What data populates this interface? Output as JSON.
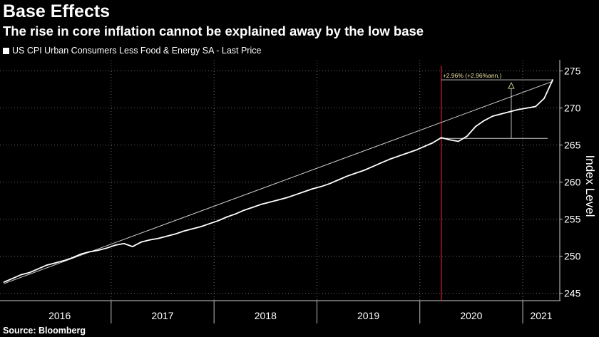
{
  "header": {
    "title": "Base Effects",
    "subtitle": "The rise in core inflation cannot be explained away by the low base"
  },
  "legend": {
    "label": "US CPI Urban Consumers Less Food & Energy SA - Last Price"
  },
  "footer": {
    "source": "Source: Bloomberg"
  },
  "colors": {
    "background": "#000000",
    "series": "#ffffff",
    "trendline": "#cfcfcf",
    "grid": "#8a8a8a",
    "marker": "#e0202a",
    "annotation": "#e8e0a0"
  },
  "chart_data": {
    "type": "line",
    "title": "Base Effects",
    "subtitle": "The rise in core inflation cannot be explained away by the low base",
    "xlabel": "",
    "ylabel": "Index Level",
    "ylim": [
      244,
      276.5
    ],
    "xlim": [
      2015.92,
      2021.36
    ],
    "x_ticks": [
      "2016",
      "2017",
      "2018",
      "2019",
      "2020",
      "2021"
    ],
    "y_ticks": [
      245,
      250,
      255,
      260,
      265,
      270,
      275
    ],
    "grid": true,
    "legend_position": "top-left",
    "series": [
      {
        "name": "US CPI Urban Consumers Less Food & Energy SA - Last Price",
        "x": [
          "2015-12",
          "2016-01",
          "2016-02",
          "2016-03",
          "2016-04",
          "2016-05",
          "2016-06",
          "2016-07",
          "2016-08",
          "2016-09",
          "2016-10",
          "2016-11",
          "2016-12",
          "2017-01",
          "2017-02",
          "2017-03",
          "2017-04",
          "2017-05",
          "2017-06",
          "2017-07",
          "2017-08",
          "2017-09",
          "2017-10",
          "2017-11",
          "2017-12",
          "2018-01",
          "2018-02",
          "2018-03",
          "2018-04",
          "2018-05",
          "2018-06",
          "2018-07",
          "2018-08",
          "2018-09",
          "2018-10",
          "2018-11",
          "2018-12",
          "2019-01",
          "2019-02",
          "2019-03",
          "2019-04",
          "2019-05",
          "2019-06",
          "2019-07",
          "2019-08",
          "2019-09",
          "2019-10",
          "2019-11",
          "2019-12",
          "2020-01",
          "2020-02",
          "2020-03",
          "2020-04",
          "2020-05",
          "2020-06",
          "2020-07",
          "2020-08",
          "2020-09",
          "2020-10",
          "2020-11",
          "2020-12",
          "2021-01",
          "2021-02",
          "2021-03",
          "2021-04"
        ],
        "values": [
          246.5,
          247.0,
          247.5,
          247.8,
          248.3,
          248.8,
          249.1,
          249.4,
          249.8,
          250.3,
          250.6,
          250.8,
          251.1,
          251.5,
          251.7,
          251.3,
          251.9,
          252.2,
          252.4,
          252.7,
          253.0,
          253.4,
          253.7,
          254.0,
          254.4,
          254.8,
          255.3,
          255.7,
          256.2,
          256.6,
          257.0,
          257.3,
          257.6,
          257.9,
          258.3,
          258.7,
          259.1,
          259.4,
          259.8,
          260.3,
          260.8,
          261.2,
          261.6,
          262.1,
          262.6,
          263.1,
          263.5,
          263.9,
          264.3,
          264.8,
          265.3,
          266.0,
          265.7,
          265.5,
          266.2,
          267.5,
          268.3,
          268.9,
          269.2,
          269.5,
          269.8,
          270.0,
          270.2,
          271.3,
          273.8
        ]
      }
    ],
    "trendline": {
      "from": {
        "x": "2015-12",
        "y": 246.3
      },
      "to": {
        "x": "2021-04",
        "y": 273.6
      }
    },
    "vertical_marker": {
      "x": "2020-03"
    },
    "annotation": {
      "text": "+2.96% (+2.96%ann.)",
      "x_start": "2020-03",
      "x_end": "2021-04",
      "y_low": 265.9,
      "y_high": 273.8
    }
  }
}
